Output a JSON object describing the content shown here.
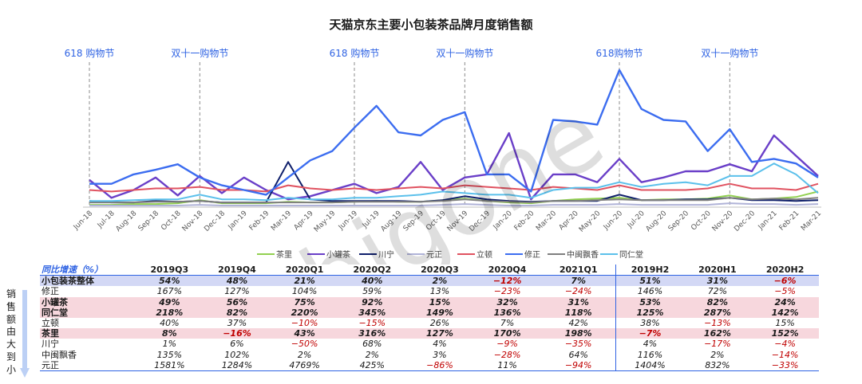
{
  "chart_data": {
    "type": "line",
    "title": "天猫京东主要小包装茶品牌月度销售额",
    "x": [
      "Jun-18",
      "Jul-18",
      "Aug-18",
      "Sep-18",
      "Oct-18",
      "Nov-18",
      "Dec-18",
      "Jan-19",
      "Feb-19",
      "Mar-19",
      "Apr-19",
      "May-19",
      "Jun-19",
      "Jul-19",
      "Aug-19",
      "Sep-19",
      "Oct-19",
      "Nov-19",
      "Dec-19",
      "Jan-20",
      "Feb-20",
      "Mar-20",
      "Apr-20",
      "May-20",
      "Jun-20",
      "Jul-20",
      "Aug-20",
      "Sep-20",
      "Oct-20",
      "Nov-20",
      "Dec-20",
      "Jan-21",
      "Feb-21",
      "Mar-21"
    ],
    "events": [
      {
        "label": "618 购物节",
        "at": "Jun-18"
      },
      {
        "label": "双十一购物节",
        "at": "Nov-18"
      },
      {
        "label": "618 购物节",
        "at": "Jun-19"
      },
      {
        "label": "双十一购物节",
        "at": "Nov-19"
      },
      {
        "label": "618购物节",
        "at": "Jun-20"
      },
      {
        "label": "双十一购物节",
        "at": "Nov-20"
      }
    ],
    "legend_position": "bottom",
    "grid": false,
    "ylim": [
      0,
      180
    ],
    "series": [
      {
        "name": "茶里",
        "color": "#92d050",
        "values": [
          3,
          3,
          4,
          4,
          5,
          9,
          5,
          5,
          5,
          7,
          6,
          6,
          7,
          8,
          7,
          7,
          9,
          11,
          8,
          6,
          5,
          8,
          10,
          11,
          12,
          9,
          10,
          10,
          11,
          15,
          10,
          11,
          13,
          20
        ]
      },
      {
        "name": "小罐茶",
        "color": "#6a3fc8",
        "values": [
          35,
          12,
          22,
          38,
          15,
          40,
          18,
          38,
          22,
          10,
          14,
          22,
          30,
          18,
          26,
          58,
          22,
          38,
          42,
          95,
          10,
          42,
          42,
          32,
          62,
          32,
          38,
          46,
          46,
          55,
          46,
          92,
          66,
          40
        ]
      },
      {
        "name": "川宁",
        "color": "#0f1f6b",
        "values": [
          8,
          6,
          6,
          8,
          7,
          8,
          6,
          6,
          6,
          58,
          10,
          8,
          8,
          8,
          8,
          7,
          9,
          14,
          10,
          8,
          7,
          8,
          8,
          8,
          16,
          9,
          9,
          10,
          10,
          12,
          9,
          9,
          8,
          9
        ]
      },
      {
        "name": "元正",
        "color": "#b0b3d8",
        "values": [
          2,
          2,
          2,
          2,
          2,
          3,
          2,
          2,
          2,
          2,
          2,
          2,
          2,
          2,
          2,
          2,
          3,
          4,
          3,
          2,
          2,
          3,
          3,
          3,
          4,
          3,
          3,
          3,
          3,
          5,
          4,
          4,
          3,
          4
        ]
      },
      {
        "name": "立顿",
        "color": "#e05260",
        "values": [
          22,
          20,
          22,
          24,
          24,
          26,
          22,
          22,
          20,
          28,
          24,
          22,
          24,
          22,
          24,
          26,
          24,
          28,
          26,
          24,
          22,
          26,
          24,
          22,
          28,
          22,
          22,
          22,
          24,
          30,
          24,
          24,
          22,
          30
        ]
      },
      {
        "name": "修正",
        "color": "#3c6df0",
        "values": [
          30,
          30,
          42,
          48,
          55,
          38,
          28,
          22,
          16,
          38,
          60,
          72,
          102,
          130,
          96,
          92,
          112,
          122,
          42,
          42,
          20,
          112,
          110,
          106,
          176,
          126,
          112,
          110,
          72,
          100,
          58,
          62,
          56,
          38
        ]
      },
      {
        "name": "中闽飘香",
        "color": "#7f7f7f",
        "values": [
          6,
          6,
          6,
          7,
          7,
          8,
          6,
          6,
          6,
          6,
          6,
          6,
          7,
          7,
          7,
          7,
          8,
          10,
          8,
          7,
          6,
          8,
          8,
          9,
          10,
          9,
          9,
          9,
          9,
          12,
          10,
          11,
          10,
          12
        ]
      },
      {
        "name": "同仁堂",
        "color": "#5bc0eb",
        "values": [
          8,
          8,
          9,
          10,
          10,
          16,
          10,
          10,
          9,
          12,
          10,
          10,
          12,
          12,
          14,
          16,
          20,
          18,
          16,
          16,
          12,
          22,
          25,
          25,
          32,
          26,
          30,
          32,
          28,
          40,
          40,
          56,
          42,
          18
        ]
      }
    ]
  },
  "table": {
    "header_label": "同比增速（%）",
    "columns": [
      "2019Q3",
      "2019Q4",
      "2020Q1",
      "2020Q2",
      "2020Q3",
      "2020Q4",
      "2021Q1",
      "2019H2",
      "2020H1",
      "2020H2"
    ],
    "rows": [
      {
        "name": "小包装茶整体",
        "style": "overall",
        "values": [
          "54%",
          "48%",
          "21%",
          "40%",
          "2%",
          "−12%",
          "7%",
          "51%",
          "31%",
          "−6%"
        ]
      },
      {
        "name": "修正",
        "style": "",
        "values": [
          "167%",
          "127%",
          "104%",
          "59%",
          "13%",
          "−23%",
          "−24%",
          "146%",
          "72%",
          "−5%"
        ]
      },
      {
        "name": "小罐茶",
        "style": "hl",
        "values": [
          "49%",
          "56%",
          "75%",
          "92%",
          "15%",
          "32%",
          "31%",
          "53%",
          "82%",
          "24%"
        ]
      },
      {
        "name": "同仁堂",
        "style": "hl",
        "values": [
          "218%",
          "82%",
          "220%",
          "345%",
          "149%",
          "136%",
          "118%",
          "125%",
          "287%",
          "142%"
        ]
      },
      {
        "name": "立顿",
        "style": "",
        "values": [
          "40%",
          "37%",
          "−10%",
          "−15%",
          "26%",
          "7%",
          "42%",
          "38%",
          "−13%",
          "15%"
        ]
      },
      {
        "name": "茶里",
        "style": "hl",
        "values": [
          "8%",
          "−16%",
          "43%",
          "316%",
          "127%",
          "170%",
          "198%",
          "−7%",
          "162%",
          "152%"
        ]
      },
      {
        "name": "川宁",
        "style": "",
        "values": [
          "1%",
          "6%",
          "−50%",
          "68%",
          "4%",
          "−9%",
          "−35%",
          "4%",
          "−17%",
          "−4%"
        ]
      },
      {
        "name": "中闽飘香",
        "style": "",
        "values": [
          "135%",
          "102%",
          "2%",
          "2%",
          "3%",
          "−28%",
          "64%",
          "116%",
          "2%",
          "−14%"
        ]
      },
      {
        "name": "元正",
        "style": "",
        "values": [
          "1581%",
          "1284%",
          "4769%",
          "425%",
          "−86%",
          "11%",
          "−94%",
          "1404%",
          "832%",
          "−33%"
        ]
      }
    ]
  },
  "side_label": "销售额由大到小",
  "watermark": "bigone",
  "colors": {
    "accent": "#2f63e3",
    "negative": "#c00000",
    "overall_bg": "#d3d8f5",
    "highlight_bg": "#f7d7dd"
  }
}
